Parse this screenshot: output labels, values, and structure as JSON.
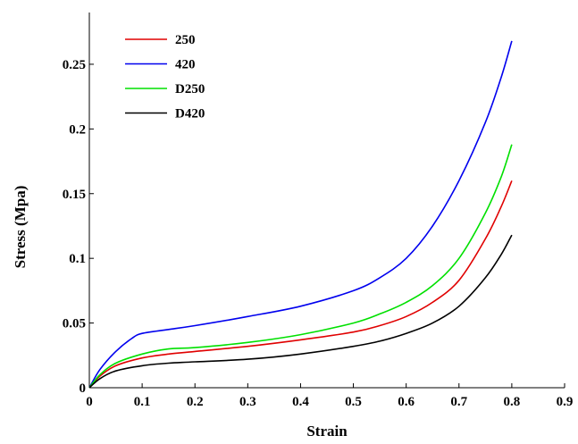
{
  "chart_data": {
    "type": "line",
    "title": "",
    "xlabel": "Strain",
    "ylabel": "Stress (Mpa)",
    "xlim": [
      0,
      0.9
    ],
    "ylim": [
      0,
      0.29
    ],
    "xticks": [
      0,
      0.1,
      0.2,
      0.3,
      0.4,
      0.5,
      0.6,
      0.7,
      0.8,
      0.9
    ],
    "xtick_labels": [
      "0",
      "0.1",
      "0.2",
      "0.3",
      "0.4",
      "0.5",
      "0.6",
      "0.7",
      "0.8",
      "0.9"
    ],
    "yticks": [
      0,
      0.05,
      0.1,
      0.15,
      0.2,
      0.25
    ],
    "ytick_labels": [
      "0",
      "0.05",
      "0.1",
      "0.15",
      "0.2",
      "0.25"
    ],
    "grid": false,
    "legend_position": "top-left",
    "series": [
      {
        "name": "250",
        "color": "#e00000",
        "x": [
          0,
          0.02,
          0.05,
          0.1,
          0.15,
          0.2,
          0.3,
          0.4,
          0.5,
          0.55,
          0.6,
          0.65,
          0.7,
          0.75,
          0.78,
          0.8
        ],
        "y": [
          0,
          0.009,
          0.017,
          0.023,
          0.026,
          0.028,
          0.032,
          0.037,
          0.043,
          0.048,
          0.055,
          0.066,
          0.083,
          0.115,
          0.14,
          0.16
        ]
      },
      {
        "name": "420",
        "color": "#0000ee",
        "x": [
          0,
          0.02,
          0.05,
          0.08,
          0.1,
          0.15,
          0.2,
          0.3,
          0.4,
          0.5,
          0.55,
          0.6,
          0.65,
          0.7,
          0.75,
          0.78,
          0.8
        ],
        "y": [
          0,
          0.014,
          0.028,
          0.038,
          0.042,
          0.045,
          0.048,
          0.055,
          0.063,
          0.075,
          0.085,
          0.1,
          0.125,
          0.16,
          0.205,
          0.24,
          0.268
        ]
      },
      {
        "name": "D250",
        "color": "#00e000",
        "x": [
          0,
          0.02,
          0.05,
          0.1,
          0.15,
          0.2,
          0.3,
          0.4,
          0.5,
          0.55,
          0.6,
          0.65,
          0.7,
          0.75,
          0.78,
          0.8
        ],
        "y": [
          0,
          0.01,
          0.019,
          0.026,
          0.03,
          0.031,
          0.035,
          0.041,
          0.05,
          0.057,
          0.066,
          0.079,
          0.1,
          0.135,
          0.163,
          0.188
        ]
      },
      {
        "name": "D420",
        "color": "#000000",
        "x": [
          0,
          0.02,
          0.05,
          0.1,
          0.15,
          0.2,
          0.3,
          0.4,
          0.5,
          0.55,
          0.6,
          0.65,
          0.7,
          0.75,
          0.78,
          0.8
        ],
        "y": [
          0,
          0.007,
          0.013,
          0.017,
          0.019,
          0.02,
          0.022,
          0.026,
          0.032,
          0.036,
          0.042,
          0.05,
          0.063,
          0.085,
          0.103,
          0.118
        ]
      }
    ]
  }
}
